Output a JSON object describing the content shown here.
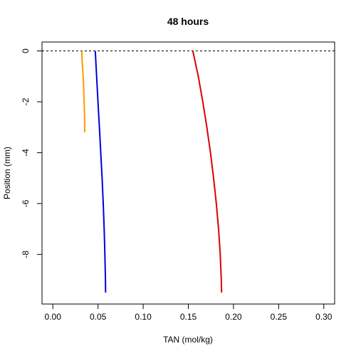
{
  "chart_data": {
    "type": "line",
    "title": "48 hours",
    "xlabel": "TAN (mol/kg)",
    "ylabel": "Position (mm)",
    "xlim": [
      -0.012,
      0.312
    ],
    "ylim": [
      -9.95,
      0.35
    ],
    "x_ticks": [
      0.0,
      0.05,
      0.1,
      0.15,
      0.2,
      0.25,
      0.3
    ],
    "x_tick_labels": [
      "0.00",
      "0.05",
      "0.10",
      "0.15",
      "0.20",
      "0.25",
      "0.30"
    ],
    "y_ticks": [
      0,
      -2,
      -4,
      -6,
      -8
    ],
    "y_tick_labels": [
      "0",
      "-2",
      "-4",
      "-6",
      "-8"
    ],
    "reference_line": {
      "y": 0,
      "style": "dashed",
      "color": "#000000"
    },
    "grid": false,
    "series": [
      {
        "color": "#FF9900",
        "points": [
          [
            0.032,
            0.0
          ],
          [
            0.0325,
            -0.4
          ],
          [
            0.0332,
            -0.8
          ],
          [
            0.0338,
            -1.2
          ],
          [
            0.0343,
            -1.6
          ],
          [
            0.0347,
            -2.0
          ],
          [
            0.035,
            -2.4
          ],
          [
            0.0352,
            -2.8
          ],
          [
            0.0353,
            -3.2
          ]
        ]
      },
      {
        "color": "#0000DD",
        "points": [
          [
            0.047,
            0.0
          ],
          [
            0.0485,
            -1.0
          ],
          [
            0.05,
            -2.0
          ],
          [
            0.0515,
            -3.0
          ],
          [
            0.053,
            -4.0
          ],
          [
            0.0545,
            -5.0
          ],
          [
            0.0558,
            -6.0
          ],
          [
            0.0568,
            -7.0
          ],
          [
            0.0576,
            -8.0
          ],
          [
            0.0582,
            -9.0
          ],
          [
            0.0584,
            -9.5
          ]
        ]
      },
      {
        "color": "#DD0000",
        "points": [
          [
            0.155,
            0.0
          ],
          [
            0.161,
            -1.0
          ],
          [
            0.166,
            -2.0
          ],
          [
            0.1705,
            -3.0
          ],
          [
            0.1745,
            -4.0
          ],
          [
            0.178,
            -5.0
          ],
          [
            0.181,
            -6.0
          ],
          [
            0.1835,
            -7.0
          ],
          [
            0.1853,
            -8.0
          ],
          [
            0.1865,
            -9.0
          ],
          [
            0.1868,
            -9.5
          ]
        ]
      }
    ]
  }
}
